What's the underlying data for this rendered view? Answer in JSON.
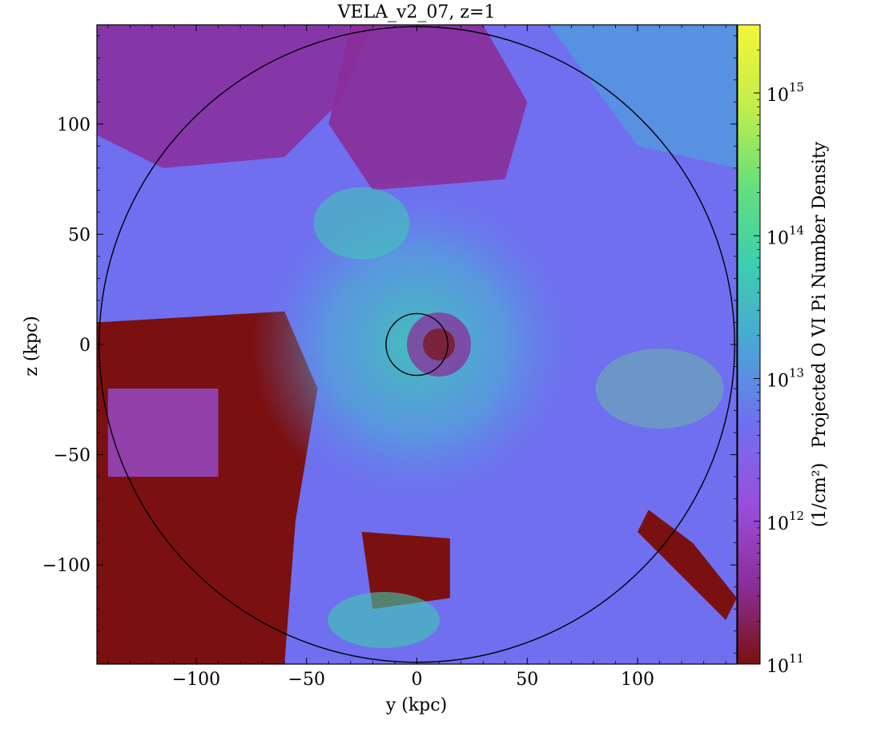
{
  "chart_data": {
    "type": "heatmap",
    "title": "VELA_v2_07, z=1",
    "xlabel": "y  (kpc)",
    "ylabel": "z  (kpc)",
    "xlim": [
      -145,
      145
    ],
    "ylim": [
      -145,
      145
    ],
    "xticks": [
      -100,
      -50,
      0,
      50,
      100
    ],
    "yticks": [
      -100,
      -50,
      0,
      50,
      100
    ],
    "xtick_labels": [
      "−100",
      "−50",
      "0",
      "50",
      "100"
    ],
    "ytick_labels": [
      "−100",
      "−50",
      "0",
      "50",
      "100"
    ],
    "colorbar": {
      "label": "Projected O VI Pi Number Density",
      "unit_label": "(1/cm²)",
      "scale": "log",
      "range": [
        100000000000.0,
        3000000000000000.0
      ],
      "tick_exponents": [
        11,
        12,
        13,
        14,
        15
      ],
      "tick_labels": [
        "10",
        "10",
        "10",
        "10",
        "10"
      ],
      "colormap_stops": [
        "#7a1010",
        "#8a2e9a",
        "#9a4fdc",
        "#6f6ff0",
        "#4aa6d8",
        "#3dcdb0",
        "#66e07a",
        "#c4ee4a",
        "#f5f53a"
      ]
    },
    "overlays": [
      {
        "shape": "circle",
        "center": [
          0,
          0
        ],
        "radius_kpc": 144
      },
      {
        "shape": "circle",
        "center": [
          0,
          0
        ],
        "radius_kpc": 14
      }
    ],
    "grid": false
  }
}
